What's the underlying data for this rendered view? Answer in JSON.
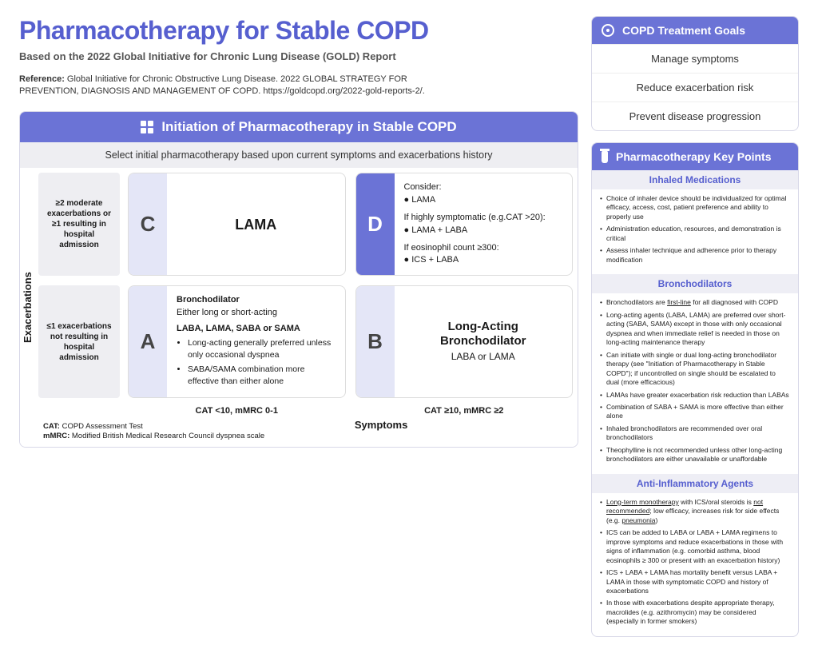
{
  "colors": {
    "primary": "#565fcf",
    "primary_bg": "#6b73d6",
    "light_purple": "#e4e6f7",
    "panel_bg": "#eeeef2"
  },
  "header": {
    "title": "Pharmacotherapy for Stable COPD",
    "subtitle": "Based on the 2022 Global Initiative for Chronic Lung Disease (GOLD) Report",
    "ref_label": "Reference:",
    "ref_text": " Global Initiative for Chronic Obstructive Lung Disease. 2022 GLOBAL STRATEGY FOR PREVENTION, DIAGNOSIS AND MANAGEMENT OF COPD. https://goldcopd.org/2022-gold-reports-2/."
  },
  "goals": {
    "title": "COPD Treatment Goals",
    "items": [
      "Manage symptoms",
      "Reduce exacerbation risk",
      "Prevent disease progression"
    ]
  },
  "matrix": {
    "title": "Initiation of Pharmacotherapy in Stable COPD",
    "instruction": "Select initial pharmacotherapy based upon current symptoms and exacerbations history",
    "y_axis": "Exacerbations",
    "x_axis": "Symptoms",
    "row_labels": [
      "≥2 moderate exacerbations or ≥1 resulting in hospital admission",
      "≤1 exacerbations not resulting in hospital admission"
    ],
    "col_labels": [
      "CAT <10, mMRC 0-1",
      "CAT ≥10, mMRC ≥2"
    ],
    "cells": {
      "C": {
        "letter": "C",
        "big": "LAMA"
      },
      "D": {
        "letter": "D",
        "l1": "Consider:",
        "l1b": "● LAMA",
        "l2": "If highly symptomatic (e.g.CAT >20):",
        "l2b": "● LAMA + LABA",
        "l3": "If eosinophil count ≥300:",
        "l3b": "● ICS + LABA"
      },
      "A": {
        "letter": "A",
        "t1": "Bronchodilator",
        "t2": "Either long or short-acting",
        "t3": "LABA, LAMA, SABA or SAMA",
        "b1": "Long-acting generally preferred unless only occasional dyspnea",
        "b2": "SABA/SAMA combination more effective than either alone"
      },
      "B": {
        "letter": "B",
        "t1": "Long-Acting Bronchodilator",
        "t2": "LABA or LAMA"
      }
    },
    "legend": {
      "l1a": "CAT:",
      "l1b": " COPD Assessment Test",
      "l2a": "mMRC:",
      "l2b": " Modified British Medical Research Council dyspnea scale"
    }
  },
  "kp": {
    "title": "Pharmacotherapy Key Points",
    "sections": [
      {
        "title": "Inhaled Medications",
        "items": [
          "Choice of inhaler device should be individualized for optimal efficacy, access, cost, patient preference and ability to properly use",
          "Administration education, resources, and demonstration is critical",
          "Assess inhaler technique and adherence prior to therapy modification"
        ]
      },
      {
        "title": "Bronchodilators",
        "items": [
          "Bronchodilators are <span class='ul'>first-line</span> for all diagnosed with COPD",
          "Long-acting agents (LABA, LAMA) are preferred over short-acting (SABA, SAMA) except in those with only occasional dyspnea and when immediate relief is needed in those on long-acting maintenance therapy",
          "Can initiate with single or dual long-acting bronchodilator therapy (see \"Initiation of Pharmacotherapy in Stable COPD\"); if uncontrolled on single should be escalated to dual (more efficacious)",
          "LAMAs have greater exacerbation risk reduction than LABAs",
          "Combination of SABA + SAMA is more effective than either alone",
          "Inhaled bronchodilators are recommended over oral bronchodilators",
          "Theophylline is not recommended unless other long-acting bronchodilators are either unavailable or unaffordable"
        ]
      },
      {
        "title": "Anti-Inflammatory Agents",
        "items": [
          "<span class='ul'>Long-term monotherapy</span> with ICS/oral steroids is <span class='ul'>not recommended</span>; low efficacy, increases risk for side effects (e.g. <span class='ul'>pneumonia</span>)",
          "ICS can be added to LABA or LABA + LAMA regimens to improve symptoms and reduce exacerbations in those with signs of inflammation (e.g. comorbid asthma, blood eosinophils ≥ 300 or present with an exacerbation history)",
          "ICS + LABA + LAMA has mortality benefit versus LABA + LAMA in those with symptomatic COPD and history of exacerbations",
          "In those with exacerbations despite appropriate therapy, macrolides (e.g. azithromycin) may be considered (especially in former smokers)"
        ]
      }
    ]
  }
}
